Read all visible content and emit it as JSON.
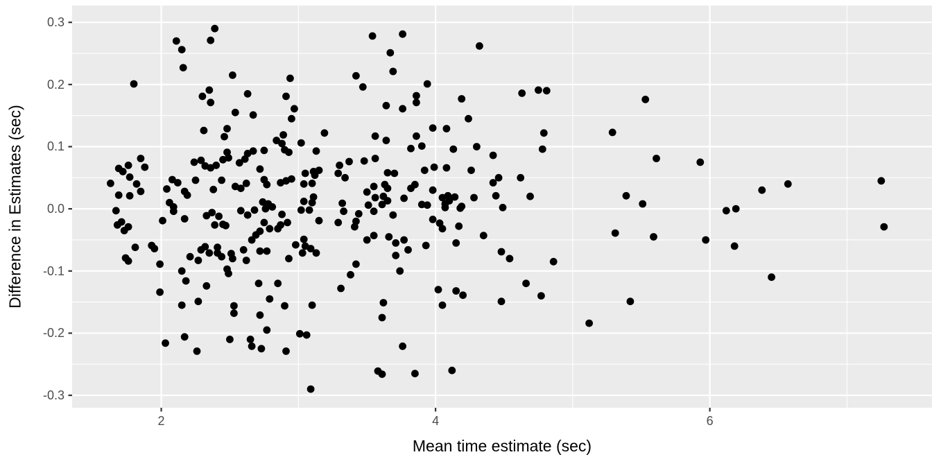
{
  "page": {
    "background": "#FFFFFF"
  },
  "chart_data": {
    "type": "scatter",
    "title": "",
    "xlabel": "Mean time estimate (sec)",
    "ylabel": "Difference in Estimates (sec)",
    "xlim": [
      1.35,
      7.62
    ],
    "ylim": [
      -0.32,
      0.327
    ],
    "x_ticks": {
      "values": [
        2,
        4,
        6
      ],
      "labels": [
        "2",
        "4",
        "6"
      ]
    },
    "x_minor_ticks": [
      3,
      5,
      7
    ],
    "y_ticks": {
      "values": [
        0.3,
        0.2,
        0.1,
        0.0,
        -0.1,
        -0.2,
        -0.3
      ],
      "labels": [
        "0.3",
        "0.2",
        "0.1",
        "0.0",
        "-0.1",
        "-0.2",
        "-0.3"
      ]
    },
    "y_minor_ticks": [
      0.25,
      0.15,
      0.05,
      -0.05,
      -0.15,
      -0.25
    ],
    "grid": "major+minor",
    "legend": "none",
    "style": {
      "panel_background": "#EBEBEB",
      "grid_color": "#FFFFFF",
      "point_color": "#000000",
      "tick_text_color": "#4D4D4D",
      "axis_title_color": "#000000",
      "tick_mark_color": "#333333"
    },
    "points": [
      [
        2.39,
        0.29
      ],
      [
        2.11,
        0.27
      ],
      [
        2.36,
        0.271
      ],
      [
        2.15,
        0.256
      ],
      [
        2.16,
        0.227
      ],
      [
        3.54,
        0.278
      ],
      [
        3.76,
        0.281
      ],
      [
        4.32,
        0.262
      ],
      [
        3.67,
        0.251
      ],
      [
        3.69,
        0.221
      ],
      [
        1.8,
        0.201
      ],
      [
        2.35,
        0.191
      ],
      [
        2.3,
        0.181
      ],
      [
        2.36,
        0.171
      ],
      [
        3.42,
        0.214
      ],
      [
        3.47,
        0.196
      ],
      [
        3.94,
        0.201
      ],
      [
        2.52,
        0.215
      ],
      [
        2.94,
        0.21
      ],
      [
        3.86,
        0.182
      ],
      [
        3.86,
        0.171
      ],
      [
        3.64,
        0.166
      ],
      [
        3.76,
        0.161
      ],
      [
        4.19,
        0.177
      ],
      [
        4.24,
        0.145
      ],
      [
        2.63,
        0.185
      ],
      [
        2.91,
        0.181
      ],
      [
        2.54,
        0.155
      ],
      [
        2.67,
        0.151
      ],
      [
        2.97,
        0.161
      ],
      [
        2.95,
        0.145
      ],
      [
        2.31,
        0.126
      ],
      [
        2.48,
        0.129
      ],
      [
        2.46,
        0.116
      ],
      [
        3.98,
        0.13
      ],
      [
        4.08,
        0.129
      ],
      [
        4.63,
        0.186
      ],
      [
        4.75,
        0.191
      ],
      [
        4.81,
        0.19
      ],
      [
        5.53,
        0.176
      ],
      [
        4.79,
        0.122
      ],
      [
        5.29,
        0.123
      ],
      [
        3.56,
        0.117
      ],
      [
        3.64,
        0.11
      ],
      [
        3.86,
        0.117
      ],
      [
        3.9,
        0.101
      ],
      [
        3.82,
        0.097
      ],
      [
        4.13,
        0.096
      ],
      [
        4.3,
        0.1
      ],
      [
        4.42,
        0.086
      ],
      [
        4.78,
        0.096
      ],
      [
        3.19,
        0.122
      ],
      [
        2.89,
        0.119
      ],
      [
        2.84,
        0.11
      ],
      [
        2.88,
        0.105
      ],
      [
        3.02,
        0.106
      ],
      [
        2.48,
        0.091
      ],
      [
        2.45,
        0.079
      ],
      [
        2.49,
        0.082
      ],
      [
        2.57,
        0.074
      ],
      [
        2.61,
        0.08
      ],
      [
        2.63,
        0.089
      ],
      [
        2.67,
        0.093
      ],
      [
        2.75,
        0.094
      ],
      [
        2.9,
        0.095
      ],
      [
        2.93,
        0.091
      ],
      [
        3.13,
        0.093
      ],
      [
        1.85,
        0.081
      ],
      [
        1.76,
        0.07
      ],
      [
        1.69,
        0.065
      ],
      [
        1.72,
        0.06
      ],
      [
        1.88,
        0.067
      ],
      [
        1.77,
        0.051
      ],
      [
        1.63,
        0.041
      ],
      [
        1.82,
        0.04
      ],
      [
        1.85,
        0.028
      ],
      [
        1.69,
        0.022
      ],
      [
        1.77,
        0.021
      ],
      [
        2.24,
        0.075
      ],
      [
        2.29,
        0.078
      ],
      [
        2.32,
        0.069
      ],
      [
        2.36,
        0.066
      ],
      [
        2.4,
        0.07
      ],
      [
        3.48,
        0.077
      ],
      [
        3.56,
        0.081
      ],
      [
        3.3,
        0.07
      ],
      [
        3.37,
        0.076
      ],
      [
        3.92,
        0.062
      ],
      [
        3.99,
        0.067
      ],
      [
        4.08,
        0.066
      ],
      [
        4.26,
        0.062
      ],
      [
        4.46,
        0.05
      ],
      [
        5.61,
        0.081
      ],
      [
        5.93,
        0.075
      ],
      [
        4.62,
        0.05
      ],
      [
        2.72,
        0.064
      ],
      [
        3.05,
        0.057
      ],
      [
        3.11,
        0.06
      ],
      [
        3.15,
        0.062
      ],
      [
        3.12,
        0.054
      ],
      [
        3.29,
        0.057
      ],
      [
        3.34,
        0.05
      ],
      [
        3.65,
        0.058
      ],
      [
        3.7,
        0.057
      ],
      [
        2.44,
        0.046
      ],
      [
        2.54,
        0.036
      ],
      [
        2.58,
        0.033
      ],
      [
        2.62,
        0.041
      ],
      [
        2.75,
        0.047
      ],
      [
        2.77,
        0.039
      ],
      [
        2.87,
        0.042
      ],
      [
        2.91,
        0.045
      ],
      [
        2.95,
        0.048
      ],
      [
        3.04,
        0.04
      ],
      [
        3.1,
        0.041
      ],
      [
        2.04,
        0.032
      ],
      [
        2.08,
        0.047
      ],
      [
        2.12,
        0.042
      ],
      [
        2.17,
        0.028
      ],
      [
        2.19,
        0.022
      ],
      [
        2.25,
        0.046
      ],
      [
        3.63,
        0.039
      ],
      [
        3.65,
        0.033
      ],
      [
        3.55,
        0.036
      ],
      [
        3.82,
        0.033
      ],
      [
        3.85,
        0.039
      ],
      [
        3.98,
        0.03
      ],
      [
        4.42,
        0.042
      ],
      [
        4.44,
        0.021
      ],
      [
        4.28,
        0.018
      ],
      [
        7.25,
        0.045
      ],
      [
        6.57,
        0.04
      ],
      [
        6.38,
        0.03
      ],
      [
        3.5,
        0.027
      ],
      [
        3.56,
        0.018
      ],
      [
        3.62,
        0.02
      ],
      [
        3.65,
        0.013
      ],
      [
        3.51,
        0.006
      ],
      [
        3.61,
        0.007
      ],
      [
        3.77,
        0.017
      ],
      [
        3.9,
        0.007
      ],
      [
        3.94,
        0.006
      ],
      [
        4.07,
        0.002
      ],
      [
        4.1,
        0.013
      ],
      [
        4.14,
        0.019
      ],
      [
        4.19,
        0.004
      ],
      [
        3.32,
        0.009
      ],
      [
        4.69,
        0.02
      ],
      [
        5.39,
        0.021
      ],
      [
        5.51,
        0.008
      ],
      [
        4.49,
        0.002
      ],
      [
        6.12,
        -0.003
      ],
      [
        6.19,
        0.0
      ],
      [
        2.06,
        0.01
      ],
      [
        2.09,
        0.003
      ],
      [
        2.09,
        -0.004
      ],
      [
        1.67,
        -0.003
      ],
      [
        2.01,
        -0.019
      ],
      [
        2.17,
        -0.016
      ],
      [
        1.68,
        -0.026
      ],
      [
        1.71,
        -0.021
      ],
      [
        1.73,
        -0.035
      ],
      [
        1.76,
        -0.029
      ],
      [
        2.33,
        -0.011
      ],
      [
        2.37,
        -0.006
      ],
      [
        2.42,
        -0.012
      ],
      [
        2.39,
        -0.026
      ],
      [
        2.45,
        -0.025
      ],
      [
        2.47,
        -0.027
      ],
      [
        2.58,
        -0.003
      ],
      [
        2.63,
        -0.01
      ],
      [
        2.68,
        -0.002
      ],
      [
        2.74,
        0.011
      ],
      [
        2.78,
        0.008
      ],
      [
        2.81,
        0.003
      ],
      [
        2.76,
        0.0
      ],
      [
        2.88,
        -0.009
      ],
      [
        3.02,
        -0.002
      ],
      [
        3.04,
        0.012
      ],
      [
        3.1,
        0.01
      ],
      [
        3.11,
        0.019
      ],
      [
        3.08,
        -0.002
      ],
      [
        3.15,
        -0.019
      ],
      [
        3.33,
        -0.004
      ],
      [
        3.29,
        -0.022
      ],
      [
        3.41,
        -0.029
      ],
      [
        3.42,
        -0.02
      ],
      [
        3.44,
        -0.008
      ],
      [
        3.55,
        -0.004
      ],
      [
        3.69,
        -0.01
      ],
      [
        3.98,
        -0.017
      ],
      [
        4.03,
        -0.023
      ],
      [
        4.05,
        -0.032
      ],
      [
        4.05,
        0.018
      ],
      [
        4.09,
        0.021
      ],
      [
        4.07,
        0.008
      ],
      [
        4.18,
        0.001
      ],
      [
        4.17,
        -0.028
      ],
      [
        2.87,
        -0.026
      ],
      [
        2.92,
        -0.022
      ],
      [
        2.85,
        -0.032
      ],
      [
        2.75,
        -0.022
      ],
      [
        2.79,
        -0.032
      ],
      [
        2.66,
        -0.05
      ],
      [
        2.69,
        -0.042
      ],
      [
        2.72,
        -0.036
      ],
      [
        7.27,
        -0.029
      ],
      [
        5.59,
        -0.045
      ],
      [
        5.97,
        -0.05
      ],
      [
        6.18,
        -0.06
      ],
      [
        5.31,
        -0.039
      ],
      [
        3.55,
        -0.043
      ],
      [
        3.5,
        -0.05
      ],
      [
        3.66,
        -0.045
      ],
      [
        3.71,
        -0.055
      ],
      [
        3.77,
        -0.05
      ],
      [
        3.8,
        -0.066
      ],
      [
        3.93,
        -0.059
      ],
      [
        4.15,
        -0.055
      ],
      [
        4.35,
        -0.043
      ],
      [
        4.48,
        -0.069
      ],
      [
        3.71,
        -0.075
      ],
      [
        3.74,
        -0.1
      ],
      [
        3.42,
        -0.089
      ],
      [
        3.38,
        -0.106
      ],
      [
        3.31,
        -0.128
      ],
      [
        1.81,
        -0.062
      ],
      [
        1.93,
        -0.059
      ],
      [
        1.95,
        -0.064
      ],
      [
        1.74,
        -0.079
      ],
      [
        1.76,
        -0.084
      ],
      [
        1.99,
        -0.089
      ],
      [
        2.21,
        -0.077
      ],
      [
        2.29,
        -0.066
      ],
      [
        2.32,
        -0.061
      ],
      [
        2.27,
        -0.083
      ],
      [
        2.35,
        -0.071
      ],
      [
        2.41,
        -0.062
      ],
      [
        2.41,
        -0.071
      ],
      [
        2.44,
        -0.077
      ],
      [
        2.51,
        -0.072
      ],
      [
        2.52,
        -0.08
      ],
      [
        2.62,
        -0.083
      ],
      [
        2.6,
        -0.066
      ],
      [
        2.72,
        -0.068
      ],
      [
        2.77,
        -0.068
      ],
      [
        2.93,
        -0.08
      ],
      [
        3.04,
        -0.049
      ],
      [
        2.98,
        -0.058
      ],
      [
        3.05,
        -0.06
      ],
      [
        3.09,
        -0.064
      ],
      [
        3.03,
        -0.071
      ],
      [
        3.13,
        -0.071
      ],
      [
        2.48,
        -0.097
      ],
      [
        2.49,
        -0.104
      ],
      [
        2.15,
        -0.1
      ],
      [
        2.18,
        -0.116
      ],
      [
        2.33,
        -0.124
      ],
      [
        1.99,
        -0.134
      ],
      [
        2.15,
        -0.155
      ],
      [
        2.27,
        -0.149
      ],
      [
        2.71,
        -0.12
      ],
      [
        2.85,
        -0.12
      ],
      [
        2.79,
        -0.145
      ],
      [
        2.9,
        -0.156
      ],
      [
        3.1,
        -0.155
      ],
      [
        2.53,
        -0.156
      ],
      [
        2.53,
        -0.168
      ],
      [
        2.72,
        -0.171
      ],
      [
        2.77,
        -0.195
      ],
      [
        3.01,
        -0.201
      ],
      [
        3.06,
        -0.203
      ],
      [
        2.5,
        -0.21
      ],
      [
        2.65,
        -0.21
      ],
      [
        2.66,
        -0.221
      ],
      [
        2.73,
        -0.225
      ],
      [
        2.91,
        -0.229
      ],
      [
        2.17,
        -0.206
      ],
      [
        2.03,
        -0.216
      ],
      [
        2.26,
        -0.229
      ],
      [
        3.62,
        -0.151
      ],
      [
        3.61,
        -0.175
      ],
      [
        4.02,
        -0.13
      ],
      [
        4.15,
        -0.132
      ],
      [
        4.2,
        -0.139
      ],
      [
        4.05,
        -0.155
      ],
      [
        4.48,
        -0.149
      ],
      [
        3.76,
        -0.221
      ],
      [
        3.58,
        -0.261
      ],
      [
        3.61,
        -0.266
      ],
      [
        3.85,
        -0.265
      ],
      [
        4.12,
        -0.26
      ],
      [
        3.09,
        -0.29
      ],
      [
        4.54,
        -0.08
      ],
      [
        4.86,
        -0.085
      ],
      [
        4.66,
        -0.12
      ],
      [
        4.77,
        -0.14
      ],
      [
        5.42,
        -0.149
      ],
      [
        5.12,
        -0.184
      ],
      [
        6.45,
        -0.11
      ],
      [
        2.38,
        0.031
      ]
    ]
  }
}
